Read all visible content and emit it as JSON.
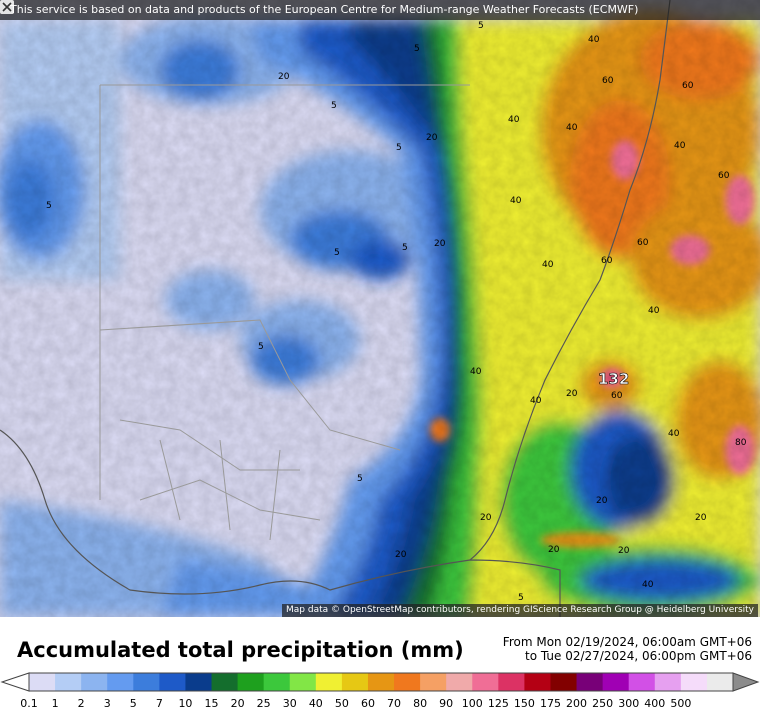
{
  "banner": {
    "text": "This service is based on data and products of the European Centre for Medium-range Weather Forecasts (ECMWF)"
  },
  "attribution": {
    "text": "Map data © OpenStreetMap contributors, rendering GIScience Research Group @ Heidelberg University"
  },
  "close_icon": "close-icon",
  "legend": {
    "title": "Accumulated total precipitation (mm)",
    "from": "From Mon 02/19/2024, 06:00am GMT+06",
    "to": "to Tue 02/27/2024, 06:00pm GMT+06",
    "ticks": [
      "0.1",
      "1",
      "2",
      "3",
      "5",
      "7",
      "10",
      "15",
      "20",
      "25",
      "30",
      "40",
      "50",
      "60",
      "70",
      "80",
      "90",
      "100",
      "125",
      "150",
      "175",
      "200",
      "250",
      "300",
      "400",
      "500"
    ],
    "colors": [
      "#dcdcf5",
      "#b4cdf5",
      "#8cb4f0",
      "#649bf0",
      "#3c7ddc",
      "#1e5ac8",
      "#0a3c8c",
      "#146e2d",
      "#1ea01e",
      "#3cc83c",
      "#82e646",
      "#f0f032",
      "#e6c814",
      "#e69614",
      "#f0781e",
      "#f5a064",
      "#f0aaaa",
      "#f06e96",
      "#dc3264",
      "#b40014",
      "#820000",
      "#780078",
      "#a000b4",
      "#d250e6",
      "#e6a0f0",
      "#f5dcfa",
      "#ebebeb"
    ]
  },
  "map_labels": {
    "max_value": "132",
    "contour_values": [
      "5",
      "5",
      "5",
      "5",
      "5",
      "5",
      "5",
      "5",
      "5",
      "5",
      "20",
      "20",
      "20",
      "20",
      "20",
      "20",
      "20",
      "20",
      "20",
      "20",
      "40",
      "40",
      "40",
      "40",
      "40",
      "40",
      "40",
      "40",
      "40",
      "40",
      "40",
      "60",
      "60",
      "60",
      "60",
      "60",
      "60",
      "80"
    ]
  }
}
